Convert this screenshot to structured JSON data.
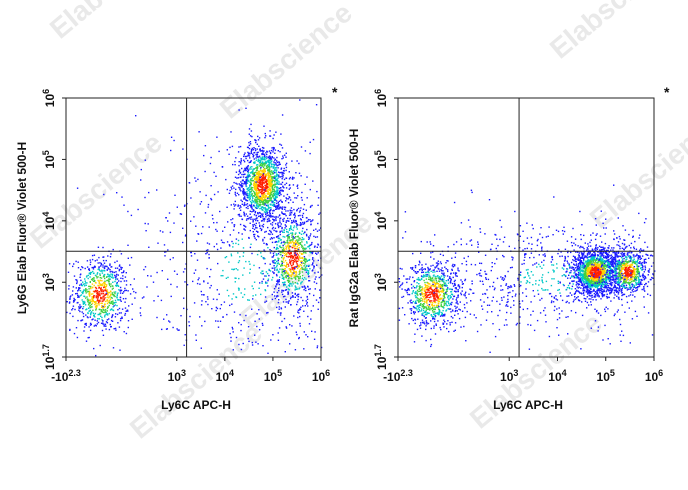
{
  "watermark": "Elabscience",
  "colors": {
    "low": "#1a1aff",
    "mid": "#00c8c8",
    "midhigh": "#40d040",
    "high": "#ffd000",
    "peak": "#ff2000"
  },
  "chart_data": [
    {
      "type": "scatter",
      "marker": "*",
      "xlabel": "Ly6C APC-H",
      "ylabel": "Ly6G Elab Fluor® Violet 500-H",
      "x_ticks": [
        {
          "base": "-10",
          "exp": "2.3",
          "value": -200
        },
        {
          "base": "10",
          "exp": "3",
          "value": 1000
        },
        {
          "base": "10",
          "exp": "4",
          "value": 10000
        },
        {
          "base": "10",
          "exp": "5",
          "value": 100000
        },
        {
          "base": "10",
          "exp": "6",
          "value": 1000000
        }
      ],
      "y_ticks": [
        {
          "base": "10",
          "exp": "1.7",
          "value": 50
        },
        {
          "base": "10",
          "exp": "3",
          "value": 1000
        },
        {
          "base": "10",
          "exp": "4",
          "value": 10000
        },
        {
          "base": "10",
          "exp": "5",
          "value": 100000
        },
        {
          "base": "10",
          "exp": "6",
          "value": 1000000
        }
      ],
      "gate": {
        "x": 1600,
        "y": 3200
      },
      "populations": [
        {
          "x": -40,
          "y": 650,
          "sx": 0.55,
          "sy": 0.55,
          "weight": 0.2
        },
        {
          "x": 60000,
          "y": 40000,
          "sx": 0.45,
          "sy": 0.6,
          "weight": 0.38
        },
        {
          "x": 250000,
          "y": 2500,
          "sx": 0.5,
          "sy": 0.7,
          "weight": 0.22
        },
        {
          "x": 30000,
          "y": 1500,
          "sx": 1.2,
          "sy": 1.1,
          "weight": 0.2
        }
      ]
    },
    {
      "type": "scatter",
      "marker": "*",
      "xlabel": "Ly6C APC-H",
      "ylabel": "Rat IgG2a Elab Fluor® Violet 500-H",
      "x_ticks": [
        {
          "base": "-10",
          "exp": "2.3",
          "value": -200
        },
        {
          "base": "10",
          "exp": "3",
          "value": 1000
        },
        {
          "base": "10",
          "exp": "4",
          "value": 10000
        },
        {
          "base": "10",
          "exp": "5",
          "value": 100000
        },
        {
          "base": "10",
          "exp": "6",
          "value": 1000000
        }
      ],
      "y_ticks": [
        {
          "base": "10",
          "exp": "1.7",
          "value": 50
        },
        {
          "base": "10",
          "exp": "3",
          "value": 1000
        },
        {
          "base": "10",
          "exp": "4",
          "value": 10000
        },
        {
          "base": "10",
          "exp": "5",
          "value": 100000
        },
        {
          "base": "10",
          "exp": "6",
          "value": 1000000
        }
      ],
      "gate": {
        "x": 1600,
        "y": 3200
      },
      "populations": [
        {
          "x": -40,
          "y": 650,
          "sx": 0.55,
          "sy": 0.5,
          "weight": 0.22
        },
        {
          "x": 60000,
          "y": 1500,
          "sx": 0.45,
          "sy": 0.35,
          "weight": 0.4
        },
        {
          "x": 280000,
          "y": 1500,
          "sx": 0.4,
          "sy": 0.35,
          "weight": 0.18
        },
        {
          "x": 8000,
          "y": 1200,
          "sx": 1.4,
          "sy": 0.5,
          "weight": 0.2
        }
      ]
    }
  ]
}
